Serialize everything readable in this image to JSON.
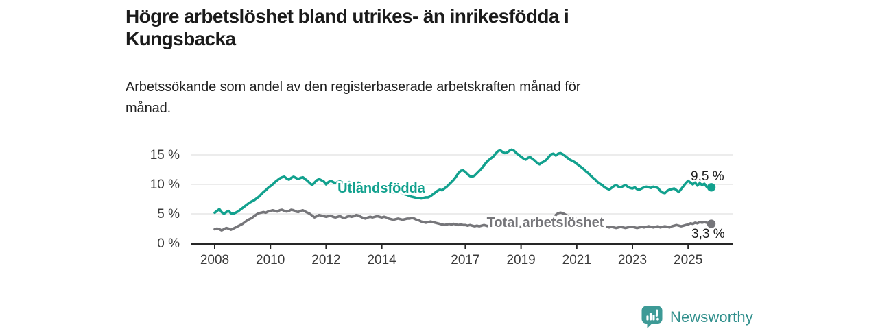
{
  "header": {
    "title_line1": "Högre arbetslöshet bland utrikes- än inrikesfödda i",
    "title_line2": "Kungsbacka",
    "subtitle_line1": "Arbetssökande som andel av den registerbaserade arbetskraften månad för",
    "subtitle_line2": "månad."
  },
  "chart_data": {
    "type": "line",
    "title": "Högre arbetslöshet bland utrikes- än inrikesfödda i Kungsbacka",
    "subtitle": "Arbetssökande som andel av den registerbaserade arbetskraften månad för månad.",
    "x_unit": "month",
    "x_start": "2008-01",
    "x_end": "2025-11",
    "ylim": [
      0,
      16.5
    ],
    "grid": "horizontal",
    "y_ticks": [
      0,
      5,
      10,
      15
    ],
    "y_tick_labels": [
      "0 %",
      "5 %",
      "10 %",
      "15 %"
    ],
    "x_tick_labels": [
      "2008",
      "2010",
      "2012",
      "2014",
      "2017",
      "2019",
      "2021",
      "2023",
      "2025"
    ],
    "x_tick_month_index": [
      0,
      24,
      48,
      72,
      108,
      132,
      156,
      180,
      204
    ],
    "axis_color": "#262626",
    "grid_color": "#d8d8d8",
    "series": [
      {
        "name": "Utlandsfödda",
        "slug": "utlandsfodda",
        "color": "#12a18e",
        "end_value_label": "9,5 %",
        "end_value": 9.5,
        "values": [
          5.2,
          5.5,
          5.8,
          5.3,
          5.0,
          5.3,
          5.5,
          5.1,
          5.0,
          5.2,
          5.4,
          5.7,
          6.0,
          6.3,
          6.6,
          6.9,
          7.1,
          7.3,
          7.6,
          7.9,
          8.3,
          8.7,
          9.0,
          9.4,
          9.7,
          10.0,
          10.4,
          10.7,
          11.0,
          11.2,
          11.3,
          11.0,
          10.8,
          11.1,
          11.3,
          11.1,
          10.9,
          11.1,
          11.2,
          10.9,
          10.6,
          10.2,
          9.9,
          10.3,
          10.7,
          10.9,
          10.7,
          10.5,
          10.0,
          10.4,
          10.6,
          10.4,
          10.2,
          10.4,
          10.5,
          10.3,
          10.1,
          10.3,
          10.4,
          10.2,
          10.0,
          10.2,
          10.3,
          10.0,
          9.8,
          9.6,
          9.4,
          9.6,
          9.7,
          9.5,
          9.3,
          9.2,
          9.0,
          9.1,
          9.2,
          9.0,
          8.8,
          8.6,
          8.5,
          8.6,
          8.7,
          8.5,
          8.3,
          8.2,
          8.0,
          7.9,
          7.8,
          7.7,
          7.7,
          7.6,
          7.7,
          7.8,
          7.8,
          8.0,
          8.3,
          8.6,
          8.9,
          9.1,
          9.0,
          9.3,
          9.6,
          10.0,
          10.4,
          10.8,
          11.3,
          11.9,
          12.3,
          12.4,
          12.1,
          11.7,
          11.4,
          11.3,
          11.5,
          11.9,
          12.3,
          12.7,
          13.2,
          13.7,
          14.1,
          14.4,
          14.7,
          15.2,
          15.6,
          15.8,
          15.5,
          15.3,
          15.4,
          15.7,
          15.9,
          15.7,
          15.3,
          15.0,
          14.7,
          14.4,
          14.2,
          14.5,
          14.6,
          14.3,
          14.0,
          13.6,
          13.4,
          13.7,
          13.9,
          14.2,
          14.7,
          15.1,
          15.2,
          14.9,
          15.2,
          15.3,
          15.1,
          14.8,
          14.5,
          14.2,
          14.0,
          13.8,
          13.5,
          13.2,
          12.9,
          12.6,
          12.2,
          11.9,
          11.5,
          11.1,
          10.8,
          10.4,
          10.1,
          9.9,
          9.5,
          9.3,
          9.1,
          9.4,
          9.7,
          9.9,
          9.6,
          9.5,
          9.7,
          9.9,
          9.6,
          9.4,
          9.3,
          9.5,
          9.2,
          9.1,
          9.3,
          9.5,
          9.6,
          9.5,
          9.4,
          9.6,
          9.5,
          9.4,
          8.9,
          8.6,
          8.5,
          8.9,
          9.1,
          9.2,
          9.3,
          9.0,
          8.7,
          9.2,
          9.7,
          10.2,
          10.6,
          10.3,
          10.0,
          10.3,
          9.8,
          10.2,
          9.9,
          10.1,
          9.6,
          9.4,
          9.5
        ]
      },
      {
        "name": "Total arbetslöshet",
        "slug": "total-arbetsloshet",
        "color": "#76767a",
        "end_value_label": "3,3 %",
        "end_value": 3.3,
        "values": [
          2.4,
          2.5,
          2.4,
          2.2,
          2.4,
          2.6,
          2.5,
          2.3,
          2.5,
          2.7,
          2.9,
          3.1,
          3.3,
          3.6,
          3.9,
          4.1,
          4.3,
          4.6,
          4.9,
          5.1,
          5.2,
          5.3,
          5.2,
          5.4,
          5.5,
          5.6,
          5.5,
          5.4,
          5.6,
          5.7,
          5.5,
          5.4,
          5.5,
          5.7,
          5.6,
          5.4,
          5.3,
          5.5,
          5.6,
          5.4,
          5.2,
          5.0,
          4.7,
          4.4,
          4.6,
          4.8,
          4.7,
          4.6,
          4.5,
          4.6,
          4.7,
          4.5,
          4.4,
          4.5,
          4.6,
          4.4,
          4.3,
          4.5,
          4.6,
          4.5,
          4.6,
          4.8,
          4.7,
          4.5,
          4.3,
          4.2,
          4.4,
          4.5,
          4.4,
          4.5,
          4.6,
          4.5,
          4.4,
          4.5,
          4.4,
          4.2,
          4.1,
          4.0,
          4.1,
          4.2,
          4.1,
          4.0,
          4.1,
          4.2,
          4.2,
          4.3,
          4.2,
          4.0,
          3.9,
          3.7,
          3.6,
          3.5,
          3.6,
          3.7,
          3.6,
          3.5,
          3.4,
          3.3,
          3.2,
          3.1,
          3.2,
          3.3,
          3.2,
          3.3,
          3.2,
          3.1,
          3.2,
          3.1,
          3.1,
          3.0,
          3.1,
          3.0,
          2.9,
          3.0,
          2.9,
          3.0,
          3.1,
          3.0,
          2.9,
          3.0,
          3.0,
          2.9,
          2.8,
          2.9,
          3.0,
          2.9,
          2.8,
          2.7,
          2.8,
          2.9,
          2.8,
          2.9,
          2.8,
          2.9,
          3.0,
          2.9,
          2.8,
          2.9,
          3.0,
          3.1,
          3.0,
          3.1,
          3.2,
          3.3,
          3.5,
          3.8,
          4.3,
          4.8,
          5.1,
          5.2,
          5.1,
          4.9,
          4.7,
          4.5,
          4.3,
          4.2,
          4.1,
          4.0,
          3.9,
          3.7,
          3.5,
          3.4,
          3.3,
          3.2,
          3.1,
          3.0,
          2.9,
          2.8,
          2.9,
          2.8,
          2.7,
          2.8,
          2.7,
          2.6,
          2.7,
          2.8,
          2.7,
          2.6,
          2.7,
          2.8,
          2.8,
          2.7,
          2.6,
          2.7,
          2.8,
          2.7,
          2.8,
          2.9,
          2.8,
          2.7,
          2.8,
          2.9,
          2.7,
          2.8,
          2.9,
          2.8,
          2.7,
          2.9,
          3.0,
          3.1,
          3.0,
          2.9,
          3.0,
          3.1,
          3.2,
          3.4,
          3.3,
          3.5,
          3.4,
          3.6,
          3.5,
          3.6,
          3.5,
          3.4,
          3.3
        ]
      }
    ]
  },
  "footer": {
    "brand": "Newsworthy",
    "logo_icon": "bar-chart-speech-bubble-icon",
    "icon_color": "#3d9a96",
    "brand_text_color": "#2e8e8b"
  }
}
